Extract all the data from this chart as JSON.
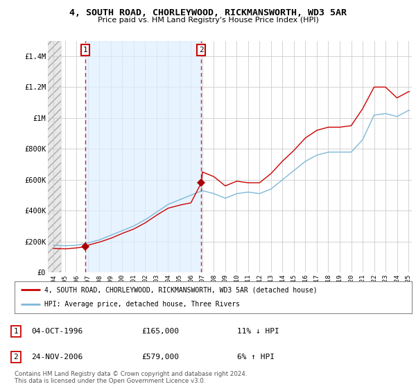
{
  "title": "4, SOUTH ROAD, CHORLEYWOOD, RICKMANSWORTH, WD3 5AR",
  "subtitle": "Price paid vs. HM Land Registry's House Price Index (HPI)",
  "legend_line1": "4, SOUTH ROAD, CHORLEYWOOD, RICKMANSWORTH, WD3 5AR (detached house)",
  "legend_line2": "HPI: Average price, detached house, Three Rivers",
  "sale1_date": "04-OCT-1996",
  "sale1_price": "£165,000",
  "sale1_hpi": "11% ↓ HPI",
  "sale1_year": 1996.75,
  "sale1_value": 165000,
  "sale2_date": "24-NOV-2006",
  "sale2_price": "£579,000",
  "sale2_hpi": "6% ↑ HPI",
  "sale2_year": 2006.9,
  "sale2_value": 579000,
  "footer": "Contains HM Land Registry data © Crown copyright and database right 2024.\nThis data is licensed under the Open Government Licence v3.0.",
  "hpi_color": "#7fb8d8",
  "price_color": "#cc0000",
  "sale_dot_color": "#aa0000",
  "hatch_color": "#cccccc",
  "shade_color": "#ddeeff",
  "ylim_max": 1500000,
  "background_color": "#ffffff",
  "plot_bg_color": "#ffffff",
  "grid_color": "#cccccc"
}
